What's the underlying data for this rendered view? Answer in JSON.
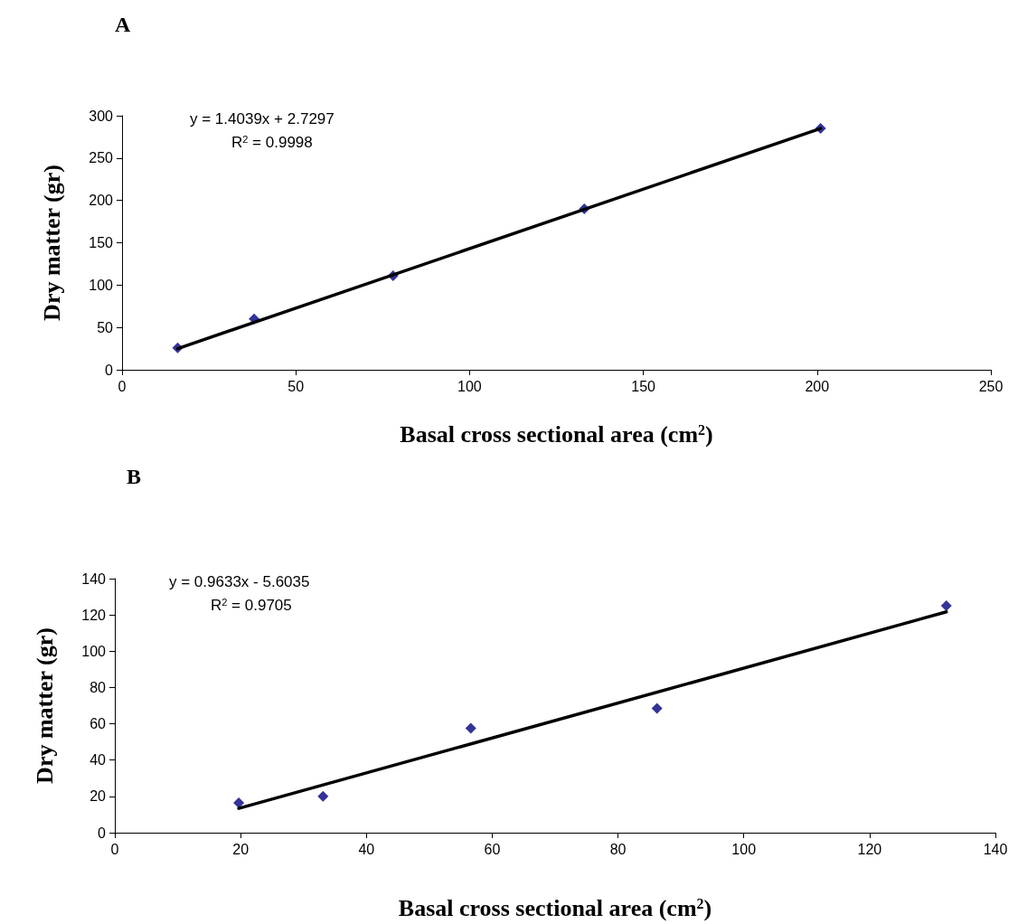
{
  "chart_data": [
    {
      "type": "scatter",
      "title": "A",
      "xlabel": "Basal cross sectional area (cm$^{2}$)",
      "ylabel": "Dry matter (gr)",
      "xlim": [
        0,
        250
      ],
      "xticks": [
        0,
        50,
        100,
        150,
        200,
        250
      ],
      "ylim": [
        0,
        300
      ],
      "yticks": [
        0,
        50,
        100,
        150,
        200,
        250,
        300
      ],
      "grid": false,
      "annotations": [
        "y = 1.4039x + 2.7297",
        "R$^{2}$ = 0.9998"
      ],
      "series": [
        {
          "type": "scatter",
          "marker": "diamond",
          "color": "#000080",
          "x": [
            16,
            38,
            78,
            133,
            201
          ],
          "values": [
            26,
            60,
            111,
            190,
            285
          ]
        },
        {
          "type": "line",
          "marker": "none",
          "line_style": "solid",
          "color": "#000000",
          "x": [
            16,
            201
          ],
          "values": [
            25,
            285
          ]
        }
      ]
    },
    {
      "type": "scatter",
      "title": "B",
      "xlabel": "Basal cross sectional area (cm$^{2}$)",
      "ylabel": "Dry matter (gr)",
      "xlim": [
        0,
        140
      ],
      "xticks": [
        0,
        20,
        40,
        60,
        80,
        100,
        120,
        140
      ],
      "ylim": [
        0,
        140
      ],
      "yticks": [
        0,
        20,
        40,
        60,
        80,
        100,
        120,
        140
      ],
      "grid": false,
      "annotations": [
        "y = 0.9633x - 5.6035",
        "R$^{2}$ = 0.9705"
      ],
      "series": [
        {
          "type": "scatter",
          "marker": "diamond",
          "color": "#000080",
          "x": [
            19.7,
            33.1,
            56.6,
            86.2,
            132.2
          ],
          "values": [
            16.5,
            20.0,
            57.6,
            68.5,
            125.0
          ]
        },
        {
          "type": "line",
          "marker": "none",
          "line_style": "solid",
          "color": "#000000",
          "x": [
            19.7,
            132.2
          ],
          "values": [
            13.4,
            121.7
          ]
        }
      ]
    }
  ]
}
